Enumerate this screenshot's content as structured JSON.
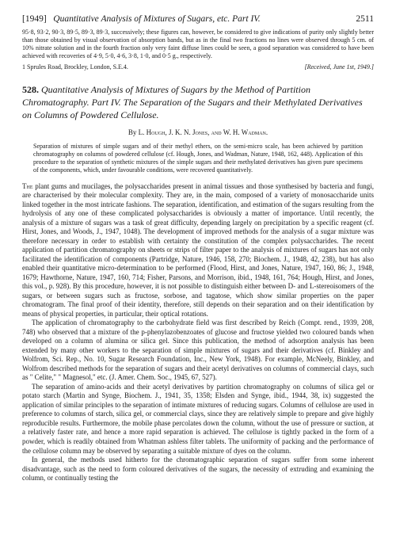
{
  "runningHead": {
    "year": "[1949]",
    "title": "Quantitative Analysis of Mixtures of Sugars, etc.  Part IV.",
    "pageNum": "2511"
  },
  "topFragment": {
    "para1": "95·8, 93·2, 90·3, 89·5, 89·3, 89·3, successively; these figures can, however, be considered to give indications of purity only slightly better than those obtained by visual observation of absorption bands, but as in the final two fractions no lines were observed through 5 cm. of 10% nitrate solution and in the fourth fraction only very faint diffuse lines could be seen, a good separation was considered to have been achieved with recoveries of 4·9, 5·0, 4·6, 3·8, 1·0, and 0·5 g., respectively.",
    "addressLeft": "1 Sprules Road, Brockley, London, S.E.4.",
    "addressRight": "[Received, June 1st, 1949.]"
  },
  "article": {
    "number": "528.",
    "title": "Quantitative Analysis of Mixtures of Sugars by the Method of Partition Chromatography.  Part IV.  The Separation of the Sugars and their Methylated Derivatives on Columns of Powdered Cellulose.",
    "authorsBy": "By ",
    "authors": "L. Hough, J. K. N. Jones, and W. H. Wadman.",
    "abstract": "Separation of mixtures of simple sugars and of their methyl ethers, on the semi-micro scale, has been achieved by partition chromatography on columns of powdered cellulose (cf. Hough, Jones, and Wadman, Nature, 1948, 162, 448). Application of this procedure to the separation of synthetic mixtures of the simple sugars and their methylated derivatives has given pure specimens of the components, which, under favourable conditions, were recovered quantitatively.",
    "bodyParas": [
      "The plant gums and mucilages, the polysaccharides present in animal tissues and those synthesised by bacteria and fungi, are characterised by their molecular complexity. They are, in the main, composed of a variety of monosaccharide units linked together in the most intricate fashions. The separation, identification, and estimation of the sugars resulting from the hydrolysis of any one of these complicated polysaccharides is obviously a matter of importance. Until recently, the analysis of a mixture of sugars was a task of great difficulty, depending largely on precipitation by a specific reagent (cf. Hirst, Jones, and Woods, J., 1947, 1048). The development of improved methods for the analysis of a sugar mixture was therefore necessary in order to establish with certainty the constitution of the complex polysaccharides. The recent application of partition chromatography on sheets or strips of filter paper to the analysis of mixtures of sugars has not only facilitated the identification of components (Partridge, Nature, 1946, 158, 270; Biochem. J., 1948, 42, 238), but has also enabled their quantitative micro-determination to be performed (Flood, Hirst, and Jones, Nature, 1947, 160, 86; J., 1948, 1679; Hawthorne, Nature, 1947, 160, 714; Fisher, Parsons, and Morrison, ibid., 1948, 161, 764; Hough, Hirst, and Jones, this vol., p. 928). By this procedure, however, it is not possible to distinguish either between D- and L-stereoisomers of the sugars, or between sugars such as fructose, sorbose, and tagatose, which show similar properties on the paper chromatogram. The final proof of their identity, therefore, still depends on their separation and on their identification by means of physical properties, in particular, their optical rotations.",
      "The application of chromatography to the carbohydrate field was first described by Reich (Compt. rend., 1939, 208, 748) who observed that a mixture of the p-phenylazobenzoates of glucose and fructose yielded two coloured bands when developed on a column of alumina or silica gel. Since this publication, the method of adsorption analysis has been extended by many other workers to the separation of simple mixtures of sugars and their derivatives (cf. Binkley and Wolfrom, Sci. Rep., No. 10, Sugar Research Foundation, Inc., New York, 1948). For example, McNeely, Binkley, and Wolfrom described methods for the separation of sugars and their acetyl derivatives on columns of commercial clays, such as \" Celite,\" \" Magnesol,\" etc. (J. Amer. Chem. Soc., 1945, 67, 527).",
      "The separation of amino-acids and their acetyl derivatives by partition chromatography on columns of silica gel or potato starch (Martin and Synge, Biochem. J., 1941, 35, 1358; Elsden and Synge, ibid., 1944, 38, ix) suggested the application of similar principles to the separation of intimate mixtures of reducing sugars. Columns of cellulose are used in preference to columns of starch, silica gel, or commercial clays, since they are relatively simple to prepare and give highly reproducible results. Furthermore, the mobile phase percolates down the column, without the use of pressure or suction, at a relatively faster rate, and hence a more rapid separation is achieved. The cellulose is tightly packed in the form of a powder, which is readily obtained from Whatman ashless filter tablets. The uniformity of packing and the performance of the cellulose column may be observed by separating a suitable mixture of dyes on the column.",
      "In general, the methods used hitherto for the chromatographic separation of sugars suffer from some inherent disadvantage, such as the need to form coloured derivatives of the sugars, the necessity of extruding and examining the column, or continually testing the"
    ]
  }
}
